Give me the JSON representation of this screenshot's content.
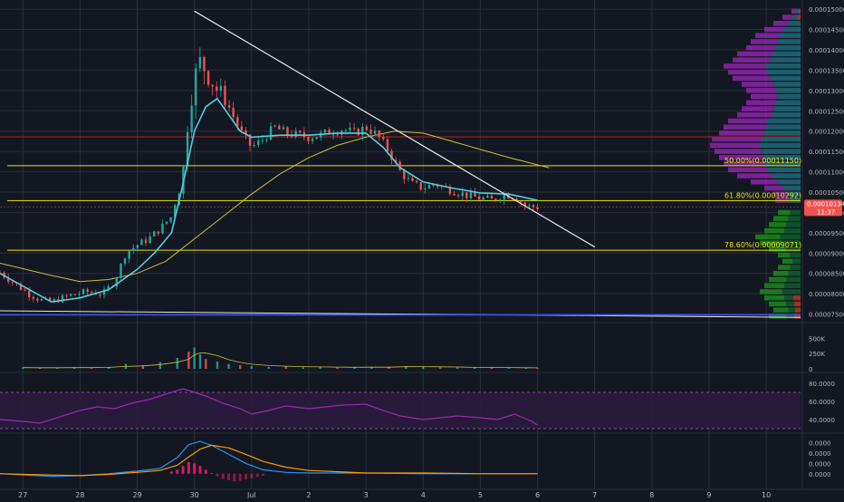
{
  "colors": {
    "background": "#131722",
    "grid": "#2a2e39",
    "up": "#26a69a",
    "down": "#ef5350",
    "ema_fast": "#4dd0e1",
    "ema_slow": "#c6c23a",
    "fib": "#e6e600",
    "trend": "#e8e8e8",
    "support": "#3f51f5",
    "resistance": "#b71c1c",
    "rsi": "#9c27b0",
    "rsi_band": "#2b1b3d",
    "macd": "#2196f3",
    "signal": "#ff9800",
    "axis_text": "#b2b5be",
    "price_badge": "#ef5350"
  },
  "chart_data": [
    {
      "type": "line",
      "panel": "price",
      "ylim": [
        7.38e-05,
        0.0001518
      ],
      "x_tick_labels": [
        "27",
        "28",
        "29",
        "30",
        "Jul",
        "2",
        "3",
        "4",
        "5",
        "6",
        "7",
        "8",
        "9",
        "10"
      ],
      "x_tick_positions": [
        0,
        1,
        2,
        3,
        4,
        5,
        6,
        7,
        8,
        9,
        10,
        11,
        12,
        13
      ],
      "y_tick_labels": [
        "0.00015000",
        "0.00014500",
        "0.00014000",
        "0.00013500",
        "0.00013000",
        "0.00012500",
        "0.00012000",
        "0.00011500",
        "0.00011000",
        "0.00010500",
        "0.00010000",
        "0.00009500",
        "0.00009000",
        "0.00008500",
        "0.00008000",
        "0.00007500"
      ],
      "y_tick_values": [
        0.00015,
        0.000145,
        0.00014,
        0.000135,
        0.00013,
        0.000125,
        0.00012,
        0.000115,
        0.00011,
        0.000105,
        0.0001,
        9.5e-05,
        9e-05,
        8.5e-05,
        8e-05,
        7.5e-05
      ],
      "price_close_series": {
        "name": "",
        "x": [
          -0.4,
          0.1,
          0.3,
          0.5,
          0.8,
          1.1,
          1.4,
          1.6,
          1.8,
          2.0,
          2.2,
          2.4,
          2.6,
          2.8,
          2.9,
          3.0,
          3.1,
          3.2,
          3.4,
          3.6,
          3.8,
          4.0,
          4.2,
          4.4,
          4.6,
          4.8,
          5.0,
          5.2,
          5.4,
          5.6,
          5.8,
          6.0,
          6.2,
          6.4,
          6.6,
          6.8,
          7.0,
          7.2,
          7.4,
          7.6,
          7.8,
          8.0,
          8.2,
          8.4,
          8.6,
          8.8,
          9.0
        ],
        "y": [
          8.52e-05,
          8e-05,
          7.85e-05,
          7.8e-05,
          7.95e-05,
          8.05e-05,
          8e-05,
          8.3e-05,
          9e-05,
          9.2e-05,
          9.35e-05,
          9.6e-05,
          9.9e-05,
          0.00011,
          0.000125,
          0.000133,
          0.000137,
          0.000135,
          0.00013,
          0.000126,
          0.00012,
          0.000116,
          0.000118,
          0.000121,
          0.0001195,
          0.000119,
          0.0001185,
          0.000119,
          0.00012,
          0.0001205,
          0.0001195,
          0.000121,
          0.000119,
          0.000115,
          0.00011,
          0.000107,
          0.000106,
          0.000107,
          0.000106,
          0.000105,
          0.000104,
          0.0001035,
          0.000103,
          0.0001045,
          0.000104,
          0.0001015,
          0.0001013
        ]
      },
      "series": [
        {
          "name": "",
          "x": [
            -0.4,
            0.5,
            1.0,
            1.5,
            2.0,
            2.3,
            2.6,
            2.8,
            3.0,
            3.2,
            3.4,
            3.6,
            3.8,
            4.0,
            4.5,
            5.0,
            5.5,
            6.0,
            6.3,
            6.6,
            7.0,
            7.5,
            8.0,
            8.5,
            9.0
          ],
          "y": [
            8.5e-05,
            7.8e-05,
            7.9e-05,
            8.1e-05,
            8.6e-05,
            9e-05,
            9.5e-05,
            0.000107,
            0.00012,
            0.000126,
            0.000128,
            0.000124,
            0.00012,
            0.0001185,
            0.000119,
            0.000119,
            0.0001195,
            0.0001195,
            0.000116,
            0.000111,
            0.0001075,
            0.000106,
            0.0001048,
            0.0001045,
            0.000103
          ]
        },
        {
          "name": "",
          "x": [
            -0.4,
            0.5,
            1.0,
            1.5,
            2.0,
            2.5,
            3.0,
            3.5,
            4.0,
            4.5,
            5.0,
            5.5,
            6.0,
            6.5,
            7.0,
            7.5,
            8.0,
            8.5,
            9.0,
            9.2
          ],
          "y": [
            8.75e-05,
            8.45e-05,
            8.3e-05,
            8.35e-05,
            8.5e-05,
            8.8e-05,
            9.35e-05,
            9.9e-05,
            0.0001045,
            0.0001095,
            0.0001135,
            0.0001165,
            0.0001185,
            0.00012,
            0.0001195,
            0.0001175,
            0.0001155,
            0.0001135,
            0.0001117,
            0.000111
          ]
        }
      ],
      "fib_levels": [
        {
          "label": "50.00%(0.00011150)",
          "value": 0.0001115
        },
        {
          "label": "61.80%(0.00010292)",
          "value": 0.00010292
        },
        {
          "label": "78.60%(0.00009071)",
          "value": 9.071e-05
        }
      ],
      "horizontal_lines": [
        {
          "kind": "resistance",
          "value": 0.0001186
        },
        {
          "kind": "current",
          "value": 0.00010134
        }
      ],
      "trendlines": [
        {
          "kind": "descending",
          "x": [
            3.0,
            10.0
          ],
          "y": [
            0.0001495,
            9.15e-05
          ]
        },
        {
          "kind": "support",
          "x": [
            -0.4,
            13.6
          ],
          "y": [
            7.58e-05,
            7.42e-05
          ]
        }
      ],
      "last_price_label": "0.00010134",
      "countdown_label": "11:37",
      "volume_profile": {
        "price_bins": [
          7.45e-05,
          7.6e-05,
          7.75e-05,
          7.9e-05,
          8.05e-05,
          8.2e-05,
          8.35e-05,
          8.5e-05,
          8.65e-05,
          8.8e-05,
          8.95e-05,
          9.1e-05,
          9.25e-05,
          9.4e-05,
          9.55e-05,
          9.7e-05,
          9.85e-05,
          0.0001,
          0.000103,
          0.0001045,
          0.000106,
          0.0001075,
          0.000109,
          0.0001105,
          0.000112,
          0.0001135,
          0.000115,
          0.0001165,
          0.000118,
          0.0001195,
          0.000121,
          0.0001225,
          0.000124,
          0.0001255,
          0.000127,
          0.0001285,
          0.00013,
          0.0001315,
          0.000133,
          0.0001345,
          0.000136,
          0.0001375,
          0.000139,
          0.0001405,
          0.000142,
          0.0001435,
          0.000145,
          0.0001465,
          0.000148,
          0.0001495
        ],
        "weights": [
          0.35,
          0.3,
          0.35,
          0.4,
          0.45,
          0.4,
          0.35,
          0.3,
          0.25,
          0.2,
          0.25,
          0.35,
          0.45,
          0.5,
          0.4,
          0.35,
          0.3,
          0.25,
          0.28,
          0.3,
          0.4,
          0.55,
          0.7,
          0.8,
          0.85,
          0.9,
          0.95,
          1.0,
          0.98,
          0.9,
          0.85,
          0.8,
          0.7,
          0.65,
          0.6,
          0.55,
          0.6,
          0.65,
          0.75,
          0.8,
          0.85,
          0.75,
          0.7,
          0.6,
          0.55,
          0.5,
          0.4,
          0.3,
          0.2,
          0.1
        ]
      }
    },
    {
      "type": "bar",
      "panel": "volume",
      "ylim": [
        0,
        700000
      ],
      "y_tick_labels": [
        "500K",
        "250K",
        "0"
      ],
      "y_tick_values": [
        500000,
        250000,
        0
      ],
      "x": [
        0.0,
        0.3,
        0.6,
        0.9,
        1.2,
        1.5,
        1.8,
        2.1,
        2.4,
        2.7,
        2.9,
        3.0,
        3.1,
        3.2,
        3.4,
        3.6,
        3.8,
        4.0,
        4.3,
        4.6,
        4.9,
        5.2,
        5.5,
        5.8,
        6.1,
        6.4,
        6.7,
        7.0,
        7.3,
        7.6,
        7.9,
        8.2,
        8.5,
        8.8,
        9.0
      ],
      "values": [
        20000,
        15000,
        18000,
        25000,
        22000,
        30000,
        80000,
        60000,
        110000,
        180000,
        280000,
        350000,
        240000,
        160000,
        120000,
        80000,
        60000,
        45000,
        30000,
        40000,
        25000,
        30000,
        20000,
        25000,
        30000,
        35000,
        45000,
        30000,
        22000,
        25000,
        20000,
        18000,
        20000,
        15000,
        12000
      ]
    },
    {
      "type": "line",
      "panel": "rsi",
      "ylim": [
        28,
        88
      ],
      "y_tick_labels": [
        "80.0000",
        "60.0000",
        "40.0000"
      ],
      "y_tick_values": [
        80,
        60,
        40
      ],
      "band": [
        30,
        70
      ],
      "series": [
        {
          "name": "",
          "x": [
            -0.4,
            0.0,
            0.3,
            0.6,
            1.0,
            1.3,
            1.6,
            1.9,
            2.2,
            2.5,
            2.8,
            3.0,
            3.2,
            3.5,
            3.8,
            4.0,
            4.3,
            4.6,
            5.0,
            5.3,
            5.6,
            6.0,
            6.3,
            6.6,
            7.0,
            7.3,
            7.6,
            8.0,
            8.3,
            8.6,
            8.9,
            9.0
          ],
          "y": [
            40,
            38,
            36,
            42,
            50,
            54,
            52,
            58,
            62,
            68,
            74,
            70,
            66,
            58,
            52,
            46,
            50,
            55,
            52,
            54,
            56,
            57,
            50,
            44,
            40,
            42,
            44,
            42,
            40,
            46,
            38,
            34
          ]
        }
      ]
    },
    {
      "type": "line",
      "panel": "macd",
      "ylim": [
        -2e-06,
        6e-06
      ],
      "y_tick_labels": [
        "0.0000",
        "0.0000",
        "0.0000",
        "0.0000"
      ],
      "y_tick_values": [
        4.8e-06,
        3.2e-06,
        1.6e-06,
        0.0
      ],
      "series": [
        {
          "name": "",
          "x": [
            -0.4,
            0.5,
            1.0,
            1.5,
            2.0,
            2.4,
            2.7,
            2.9,
            3.1,
            3.3,
            3.6,
            3.9,
            4.2,
            4.6,
            5.0,
            6.0,
            7.0,
            8.0,
            9.0
          ],
          "y": [
            0.0,
            -4e-07,
            -3e-07,
            0.0,
            4e-07,
            8e-07,
            2.5e-06,
            4.5e-06,
            5e-06,
            4.4e-06,
            3e-06,
            1.6e-06,
            6e-07,
            2e-07,
            1e-07,
            1e-07,
            0.0,
            0.0,
            0.0
          ]
        },
        {
          "name": "",
          "x": [
            -0.4,
            0.5,
            1.0,
            1.5,
            2.0,
            2.4,
            2.7,
            2.9,
            3.1,
            3.3,
            3.6,
            3.9,
            4.2,
            4.6,
            5.0,
            6.0,
            7.0,
            8.0,
            9.0
          ],
          "y": [
            0.0,
            -2e-07,
            -3e-07,
            -1e-07,
            2e-07,
            5e-07,
            1.3e-06,
            2.6e-06,
            3.8e-06,
            4.4e-06,
            4e-06,
            3e-06,
            1.9e-06,
            1e-06,
            5e-07,
            1e-07,
            1e-07,
            0.0,
            0.0
          ]
        }
      ],
      "histogram": {
        "x": [
          2.6,
          2.7,
          2.8,
          2.9,
          3.0,
          3.1,
          3.2,
          3.3,
          3.4,
          3.5,
          3.6,
          3.7,
          3.8,
          3.9,
          4.0,
          4.1,
          4.2
        ],
        "values": [
          3e-07,
          6e-07,
          1.2e-06,
          1.8e-06,
          1.6e-06,
          1.2e-06,
          6e-07,
          1e-07,
          -4e-07,
          -8e-07,
          -1e-06,
          -1.2e-06,
          -1.1e-06,
          -9e-07,
          -7e-07,
          -5e-07,
          -3e-07
        ]
      }
    }
  ]
}
